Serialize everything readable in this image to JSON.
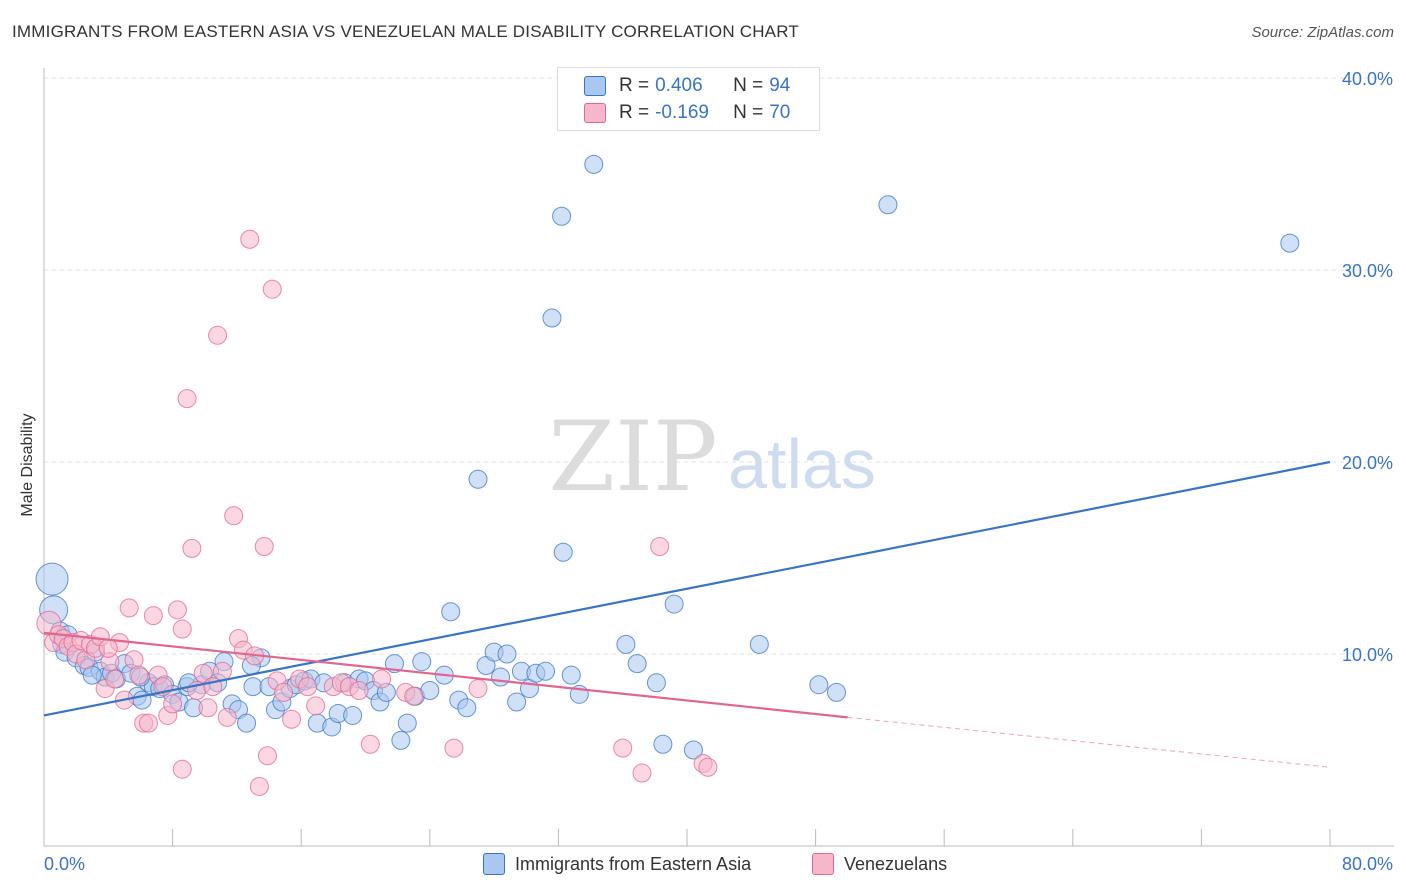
{
  "header": {
    "title": "IMMIGRANTS FROM EASTERN ASIA VS VENEZUELAN MALE DISABILITY CORRELATION CHART",
    "source": "Source: ZipAtlas.com"
  },
  "watermark": {
    "zip": "ZIP",
    "atlas": "atlas"
  },
  "legend_top": {
    "rows": [
      {
        "r_label": "R = ",
        "r_value": "0.406",
        "n_label": "N = ",
        "n_value": "94",
        "color": "#a9c7f0"
      },
      {
        "r_label": "R = ",
        "r_value": "-0.169",
        "n_label": "N = ",
        "n_value": "70",
        "color": "#f6b7ca"
      }
    ]
  },
  "legend_bottom": {
    "items": [
      {
        "label": "Immigrants from Eastern Asia",
        "color": "#a9c7f0"
      },
      {
        "label": "Venezuelans",
        "color": "#f6b7ca"
      }
    ]
  },
  "chart_data": {
    "type": "scatter",
    "title": "IMMIGRANTS FROM EASTERN ASIA VS VENEZUELAN MALE DISABILITY CORRELATION CHART",
    "xlabel": "",
    "ylabel": "Male Disability",
    "xlim": [
      0,
      80
    ],
    "ylim": [
      0,
      40
    ],
    "x_tick_labels": [
      "0.0%",
      "80.0%"
    ],
    "y_ticks": [
      10,
      20,
      30,
      40
    ],
    "y_tick_labels": [
      "10.0%",
      "20.0%",
      "30.0%",
      "40.0%"
    ],
    "grid": "horizontal dashed",
    "legend_placement": "top-center",
    "series": [
      {
        "name": "Immigrants from Eastern Asia",
        "color": "#3a74c4",
        "fill": "#a9c7f0",
        "trend": {
          "x": [
            0,
            80
          ],
          "y": [
            6.8,
            20.0
          ],
          "style": "solid"
        },
        "points": [
          [
            0.5,
            13.9
          ],
          [
            0.6,
            12.3
          ],
          [
            1.0,
            11.2
          ],
          [
            1.1,
            10.5
          ],
          [
            1.3,
            10.1
          ],
          [
            1.5,
            11.0
          ],
          [
            2.0,
            9.8
          ],
          [
            2.5,
            9.4
          ],
          [
            2.8,
            9.3
          ],
          [
            3.2,
            10.1
          ],
          [
            3.5,
            9.1
          ],
          [
            3.8,
            8.8
          ],
          [
            4.2,
            9.0
          ],
          [
            4.5,
            8.7
          ],
          [
            5.0,
            9.5
          ],
          [
            5.4,
            9.0
          ],
          [
            5.8,
            7.8
          ],
          [
            6.1,
            7.6
          ],
          [
            6.5,
            8.5
          ],
          [
            6.8,
            8.3
          ],
          [
            7.2,
            8.2
          ],
          [
            7.5,
            8.4
          ],
          [
            8.0,
            7.9
          ],
          [
            8.4,
            7.5
          ],
          [
            8.9,
            8.3
          ],
          [
            9.3,
            7.2
          ],
          [
            9.8,
            8.4
          ],
          [
            10.3,
            9.1
          ],
          [
            10.8,
            8.5
          ],
          [
            11.2,
            9.6
          ],
          [
            11.7,
            7.4
          ],
          [
            12.1,
            7.1
          ],
          [
            12.6,
            6.4
          ],
          [
            13.0,
            8.3
          ],
          [
            13.5,
            9.8
          ],
          [
            14.0,
            8.3
          ],
          [
            14.4,
            7.1
          ],
          [
            14.8,
            7.5
          ],
          [
            15.3,
            8.2
          ],
          [
            15.7,
            8.4
          ],
          [
            16.2,
            8.6
          ],
          [
            16.6,
            8.7
          ],
          [
            17.0,
            6.4
          ],
          [
            17.4,
            8.5
          ],
          [
            17.9,
            6.2
          ],
          [
            18.3,
            6.9
          ],
          [
            18.7,
            8.5
          ],
          [
            19.2,
            6.8
          ],
          [
            19.6,
            8.7
          ],
          [
            20.0,
            8.6
          ],
          [
            20.5,
            8.1
          ],
          [
            20.9,
            7.5
          ],
          [
            21.3,
            8.0
          ],
          [
            21.8,
            9.5
          ],
          [
            22.2,
            5.5
          ],
          [
            22.6,
            6.4
          ],
          [
            23.1,
            7.8
          ],
          [
            23.5,
            9.6
          ],
          [
            24.0,
            8.1
          ],
          [
            24.9,
            8.9
          ],
          [
            25.3,
            12.2
          ],
          [
            25.8,
            7.6
          ],
          [
            26.3,
            7.2
          ],
          [
            27.0,
            19.1
          ],
          [
            27.5,
            9.4
          ],
          [
            28.0,
            10.1
          ],
          [
            28.4,
            8.8
          ],
          [
            28.8,
            10.0
          ],
          [
            29.4,
            7.5
          ],
          [
            29.7,
            9.1
          ],
          [
            30.2,
            8.2
          ],
          [
            30.6,
            9.0
          ],
          [
            31.2,
            9.1
          ],
          [
            31.6,
            27.5
          ],
          [
            32.2,
            32.8
          ],
          [
            32.3,
            15.3
          ],
          [
            32.8,
            8.9
          ],
          [
            33.3,
            7.9
          ],
          [
            34.2,
            35.5
          ],
          [
            36.2,
            10.5
          ],
          [
            36.9,
            9.5
          ],
          [
            38.1,
            8.5
          ],
          [
            38.5,
            5.3
          ],
          [
            39.2,
            12.6
          ],
          [
            40.4,
            5.0
          ],
          [
            44.5,
            10.5
          ],
          [
            48.2,
            8.4
          ],
          [
            49.3,
            8.0
          ],
          [
            52.5,
            33.4
          ],
          [
            77.5,
            31.4
          ],
          [
            3.0,
            8.9
          ],
          [
            6.0,
            8.8
          ],
          [
            9.0,
            8.5
          ],
          [
            12.9,
            9.4
          ]
        ]
      },
      {
        "name": "Venezuelans",
        "color": "#e0668f",
        "fill": "#f6b7ca",
        "trend": {
          "x": [
            0,
            50
          ],
          "y": [
            11.1,
            6.7
          ],
          "style": "solid",
          "extended_x": [
            50,
            80
          ],
          "extended_y": [
            6.7,
            4.1
          ],
          "extended_style": "dashed"
        },
        "points": [
          [
            0.3,
            11.6
          ],
          [
            0.6,
            10.6
          ],
          [
            0.9,
            11.0
          ],
          [
            1.2,
            10.8
          ],
          [
            1.5,
            10.4
          ],
          [
            1.8,
            10.6
          ],
          [
            2.0,
            10.0
          ],
          [
            2.3,
            10.7
          ],
          [
            2.6,
            9.7
          ],
          [
            2.9,
            10.5
          ],
          [
            3.2,
            10.3
          ],
          [
            3.5,
            10.9
          ],
          [
            3.8,
            8.2
          ],
          [
            4.1,
            9.6
          ],
          [
            4.4,
            8.7
          ],
          [
            4.7,
            10.6
          ],
          [
            5.0,
            7.6
          ],
          [
            5.3,
            12.4
          ],
          [
            5.6,
            9.7
          ],
          [
            5.9,
            8.9
          ],
          [
            6.2,
            6.4
          ],
          [
            6.5,
            6.4
          ],
          [
            6.8,
            12.0
          ],
          [
            7.1,
            8.9
          ],
          [
            7.4,
            8.3
          ],
          [
            7.7,
            6.8
          ],
          [
            8.0,
            7.4
          ],
          [
            8.3,
            12.3
          ],
          [
            8.6,
            11.3
          ],
          [
            8.6,
            4.0
          ],
          [
            8.9,
            23.3
          ],
          [
            9.2,
            15.5
          ],
          [
            9.5,
            8.1
          ],
          [
            9.9,
            9.0
          ],
          [
            10.2,
            7.2
          ],
          [
            10.5,
            8.3
          ],
          [
            10.8,
            26.6
          ],
          [
            11.1,
            9.1
          ],
          [
            11.4,
            6.7
          ],
          [
            11.8,
            17.2
          ],
          [
            12.1,
            10.8
          ],
          [
            12.4,
            10.2
          ],
          [
            12.8,
            31.6
          ],
          [
            13.1,
            9.9
          ],
          [
            13.4,
            3.1
          ],
          [
            13.7,
            15.6
          ],
          [
            13.9,
            4.7
          ],
          [
            14.2,
            29.0
          ],
          [
            14.5,
            8.6
          ],
          [
            14.9,
            8.0
          ],
          [
            15.4,
            6.6
          ],
          [
            15.9,
            8.7
          ],
          [
            16.4,
            8.3
          ],
          [
            16.9,
            7.3
          ],
          [
            18.0,
            8.3
          ],
          [
            18.5,
            8.5
          ],
          [
            19.0,
            8.3
          ],
          [
            19.6,
            8.1
          ],
          [
            20.3,
            5.3
          ],
          [
            21.0,
            8.7
          ],
          [
            22.5,
            8.0
          ],
          [
            23.0,
            7.8
          ],
          [
            25.5,
            5.1
          ],
          [
            27.0,
            8.2
          ],
          [
            36.0,
            5.1
          ],
          [
            37.2,
            3.8
          ],
          [
            38.3,
            15.6
          ],
          [
            41.0,
            4.3
          ],
          [
            41.3,
            4.1
          ],
          [
            4.0,
            10.3
          ]
        ]
      }
    ]
  }
}
